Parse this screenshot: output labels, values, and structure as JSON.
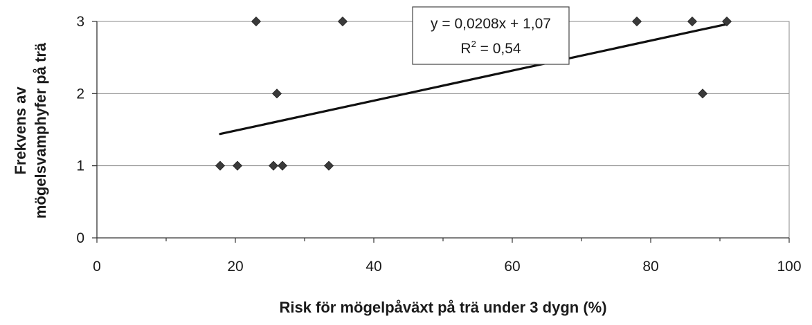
{
  "chart_data": {
    "type": "scatter",
    "title": "",
    "xlabel": "Risk för mögelpåväxt på trä under 3 dygn (%)",
    "ylabel_line1": "Frekvens av",
    "ylabel_line2": "mögelsvamphyfer på trä",
    "xlim": [
      0,
      100
    ],
    "ylim": [
      0,
      3
    ],
    "x_ticks": [
      0,
      20,
      40,
      60,
      80,
      100
    ],
    "y_ticks": [
      0,
      1,
      2,
      3
    ],
    "x_tick_labels": [
      "0",
      "20",
      "40",
      "60",
      "80",
      "100"
    ],
    "y_tick_labels": [
      "0",
      "1",
      "2",
      "3"
    ],
    "grid": "horizontal",
    "marker": "diamond",
    "marker_color": "#3a3a3a",
    "points": [
      {
        "x": 23.0,
        "y": 3
      },
      {
        "x": 35.5,
        "y": 3
      },
      {
        "x": 78.0,
        "y": 3
      },
      {
        "x": 86.0,
        "y": 3
      },
      {
        "x": 91.0,
        "y": 3
      },
      {
        "x": 26.0,
        "y": 2
      },
      {
        "x": 87.5,
        "y": 2
      },
      {
        "x": 17.8,
        "y": 1
      },
      {
        "x": 20.3,
        "y": 1
      },
      {
        "x": 25.5,
        "y": 1
      },
      {
        "x": 26.8,
        "y": 1
      },
      {
        "x": 33.5,
        "y": 1
      }
    ],
    "trendline": {
      "slope": 0.0208,
      "intercept": 1.07,
      "x_range": [
        17.8,
        91.0
      ],
      "equation_text": "y = 0,0208x + 1,07",
      "r2_label_prefix": "R",
      "r2_label_sup": "2",
      "r2_label_value": " = 0,54"
    }
  }
}
